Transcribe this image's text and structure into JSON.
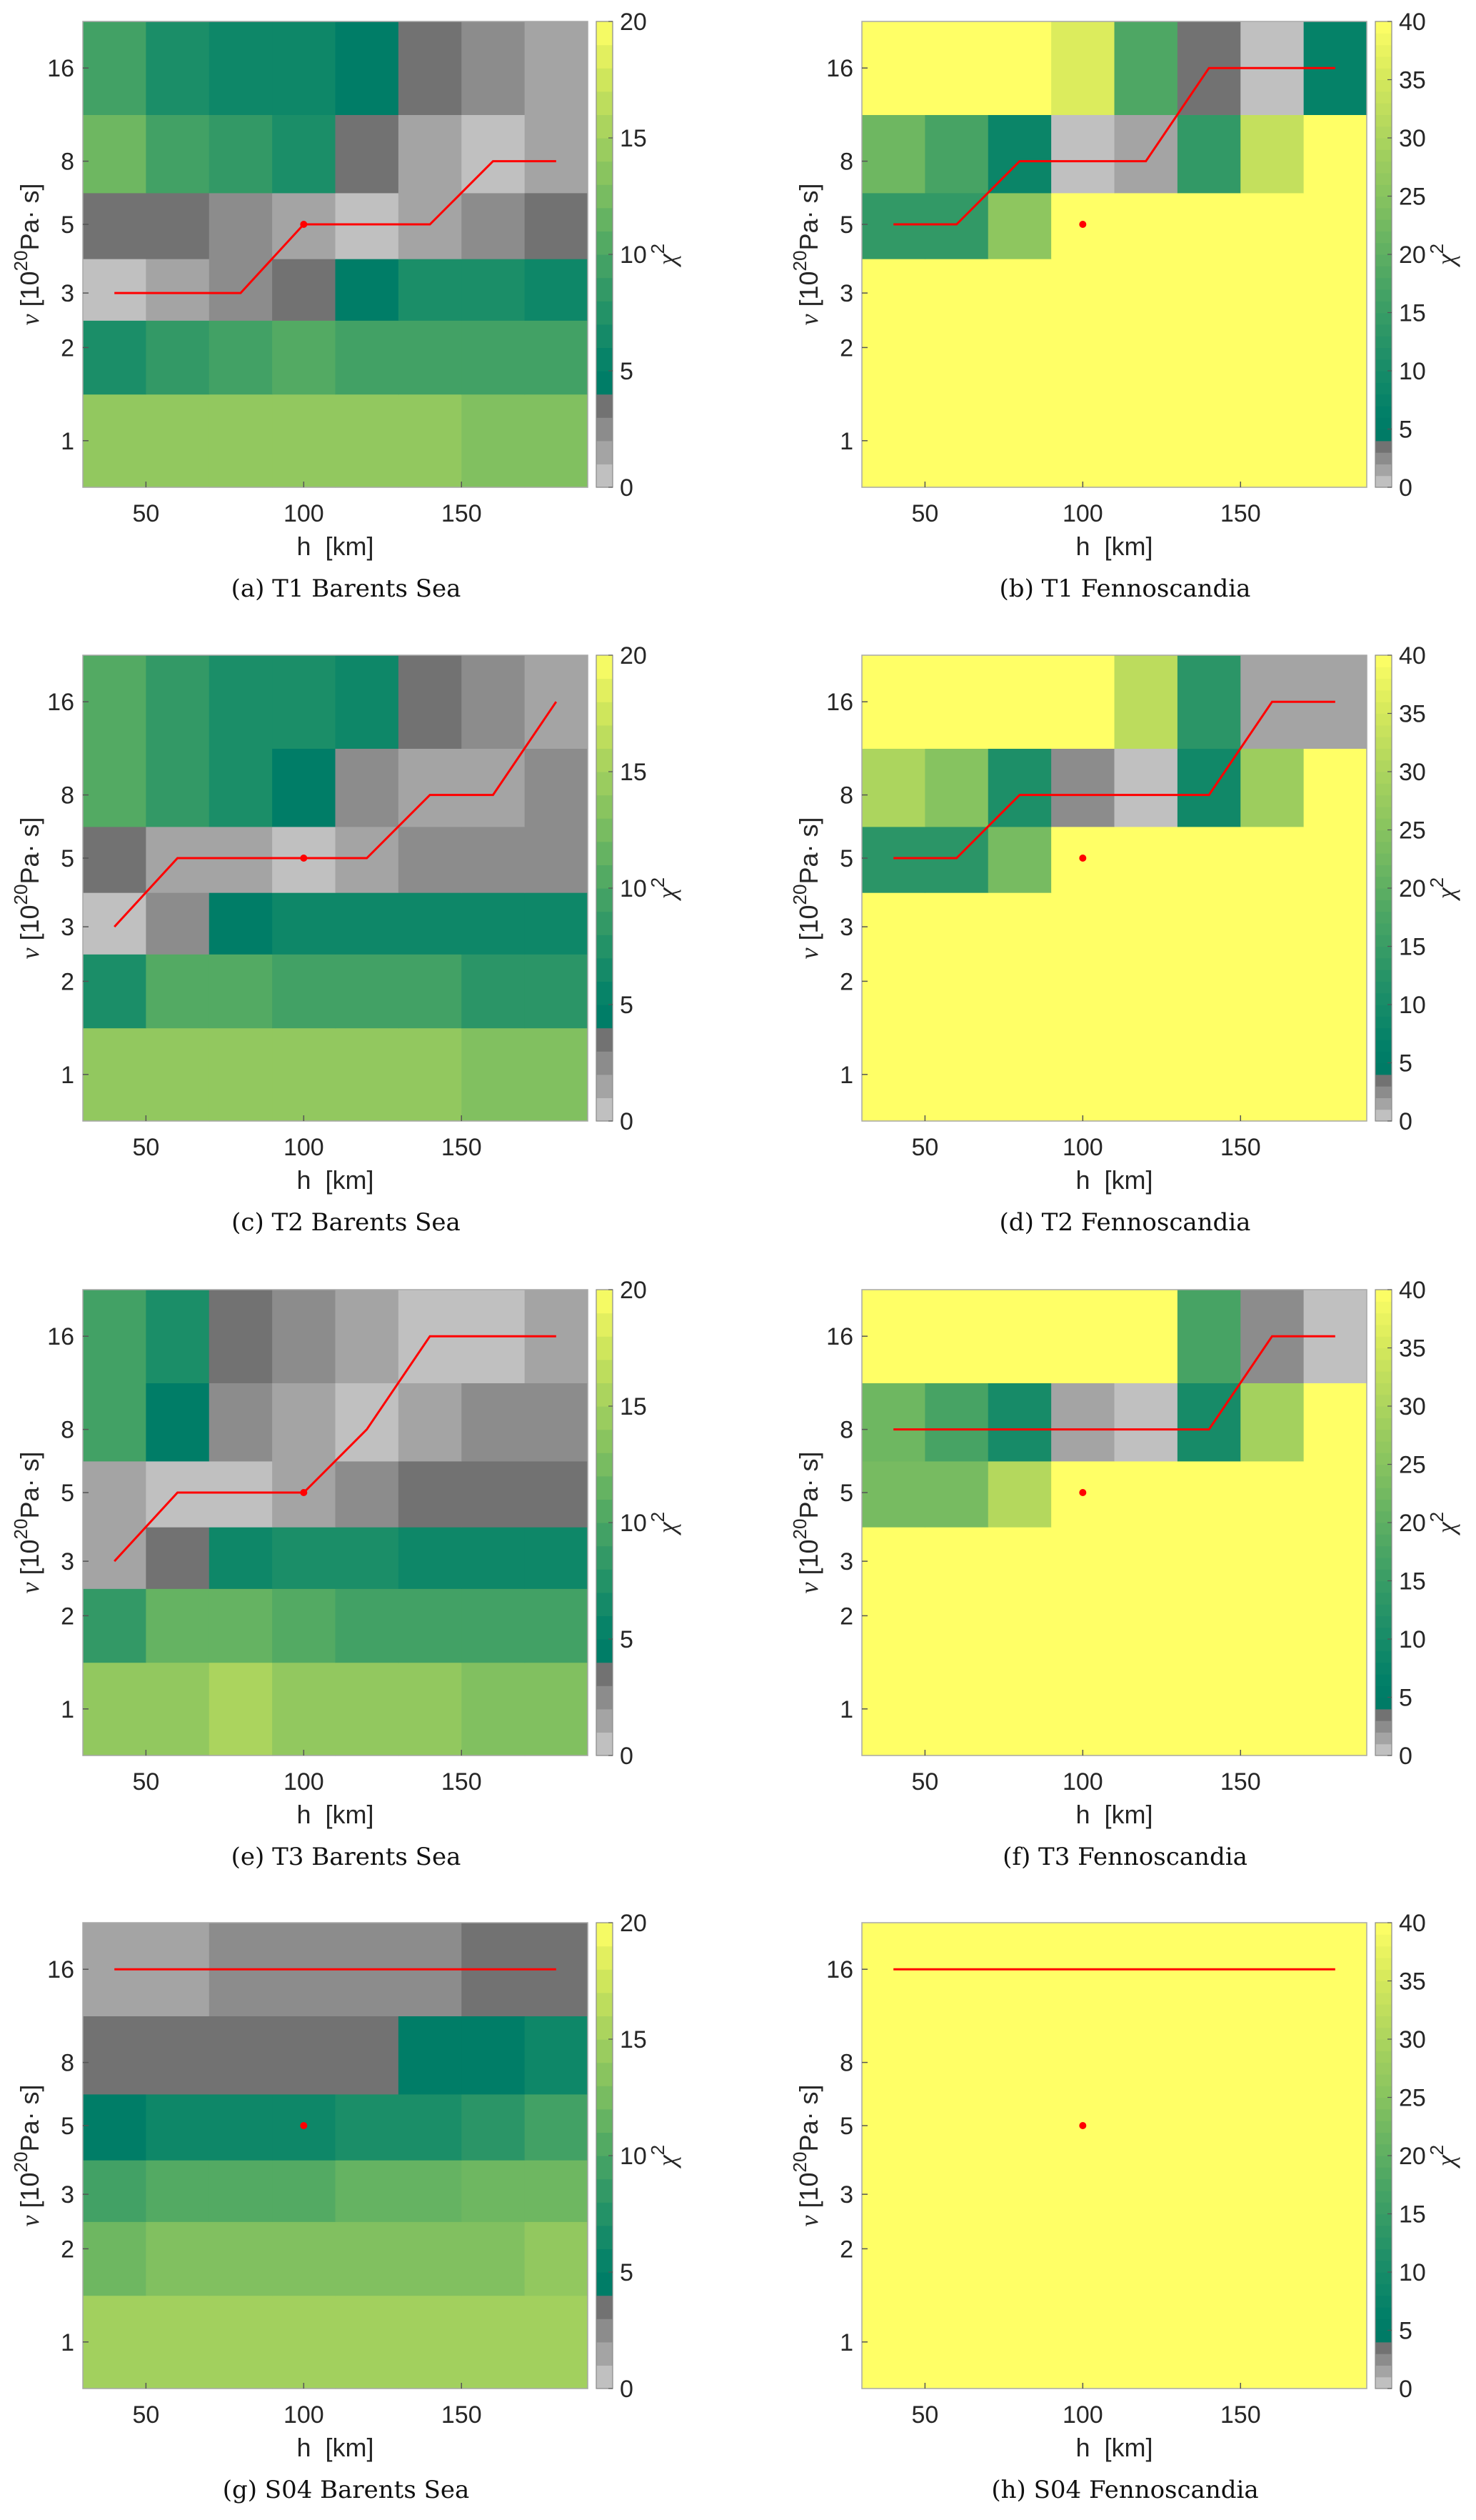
{
  "chart_data": [
    {
      "type": "heatmap",
      "caption": "(a) T1 Barents Sea",
      "xlabel": "h  [km]",
      "ylabel": {
        "symbol": "ν",
        "unit_base": " [10",
        "unit_exp": "20",
        "unit_rest": "Pa· s]"
      },
      "colorbar_label": {
        "symbol": "χ",
        "exp": "2"
      },
      "x": [
        40,
        60,
        80,
        100,
        120,
        140,
        160,
        180
      ],
      "xlim": [
        30,
        190
      ],
      "xticks": [
        "50",
        "100",
        "150"
      ],
      "y": [
        1,
        2,
        3,
        5,
        8,
        16
      ],
      "yscale": "log",
      "yticks": [
        "1",
        "2",
        "3",
        "5",
        "8",
        "16"
      ],
      "clim": [
        0,
        20
      ],
      "colorbar_ticks": [
        "0",
        "5",
        "10",
        "15",
        "20"
      ],
      "z": [
        [
          14,
          14,
          14,
          14,
          14,
          14,
          13,
          13
        ],
        [
          7,
          8.5,
          9.5,
          10.5,
          9.5,
          9.5,
          9.5,
          9.5
        ],
        [
          0.5,
          1.5,
          2.5,
          3.5,
          4.5,
          7,
          7,
          6
        ],
        [
          3.5,
          3.5,
          2.5,
          1.5,
          0.5,
          1.5,
          2.5,
          3.5
        ],
        [
          12,
          9.5,
          8.5,
          7,
          3.5,
          1.5,
          0.5,
          1.5
        ],
        [
          9.5,
          7,
          6,
          6,
          4.5,
          3.5,
          2.5,
          1.5
        ]
      ],
      "best_fit_line": [
        [
          40,
          3
        ],
        [
          80,
          3
        ],
        [
          100,
          5
        ],
        [
          140,
          5
        ],
        [
          160,
          8
        ],
        [
          180,
          8
        ]
      ],
      "reference_point": [
        100,
        5
      ]
    },
    {
      "type": "heatmap",
      "caption": "(b) T1 Fennoscandia",
      "xlabel": "h  [km]",
      "ylabel": {
        "symbol": "ν",
        "unit_base": " [10",
        "unit_exp": "20",
        "unit_rest": "Pa· s]"
      },
      "colorbar_label": {
        "symbol": "χ",
        "exp": "2"
      },
      "x": [
        40,
        60,
        80,
        100,
        120,
        140,
        160,
        180
      ],
      "xlim": [
        30,
        190
      ],
      "xticks": [
        "50",
        "100",
        "150"
      ],
      "y": [
        1,
        2,
        3,
        5,
        8,
        16
      ],
      "yscale": "log",
      "yticks": [
        "1",
        "2",
        "3",
        "5",
        "8",
        "16"
      ],
      "clim": [
        0,
        40
      ],
      "colorbar_ticks": [
        "0",
        "5",
        "10",
        "15",
        "20",
        "25",
        "30",
        "35",
        "40"
      ],
      "z": [
        [
          40,
          40,
          40,
          40,
          40,
          40,
          40,
          40
        ],
        [
          40,
          40,
          40,
          40,
          40,
          40,
          40,
          40
        ],
        [
          40,
          40,
          40,
          40,
          40,
          40,
          40,
          40
        ],
        [
          14,
          14,
          26,
          40,
          40,
          40,
          40,
          40
        ],
        [
          22,
          17,
          8,
          0.5,
          1.5,
          14,
          33,
          40
        ],
        [
          40,
          40,
          40,
          36,
          18,
          3.5,
          0.5,
          7
        ]
      ],
      "best_fit_line": [
        [
          40,
          5
        ],
        [
          60,
          5
        ],
        [
          80,
          8
        ],
        [
          120,
          8
        ],
        [
          140,
          16
        ],
        [
          180,
          16
        ]
      ],
      "reference_point": [
        100,
        5
      ]
    },
    {
      "type": "heatmap",
      "caption": "(c) T2 Barents Sea",
      "xlabel": "h  [km]",
      "ylabel": {
        "symbol": "ν",
        "unit_base": " [10",
        "unit_exp": "20",
        "unit_rest": "Pa· s]"
      },
      "colorbar_label": {
        "symbol": "χ",
        "exp": "2"
      },
      "x": [
        40,
        60,
        80,
        100,
        120,
        140,
        160,
        180
      ],
      "xlim": [
        30,
        190
      ],
      "xticks": [
        "50",
        "100",
        "150"
      ],
      "y": [
        1,
        2,
        3,
        5,
        8,
        16
      ],
      "yscale": "log",
      "yticks": [
        "1",
        "2",
        "3",
        "5",
        "8",
        "16"
      ],
      "clim": [
        0,
        20
      ],
      "colorbar_ticks": [
        "0",
        "5",
        "10",
        "15",
        "20"
      ],
      "z": [
        [
          14,
          14,
          14,
          14,
          14,
          14,
          13,
          13
        ],
        [
          7,
          10.5,
          10.5,
          9.5,
          9.5,
          9.5,
          8,
          8
        ],
        [
          0.5,
          2.5,
          4.5,
          6,
          6,
          6,
          6,
          6
        ],
        [
          3.5,
          1.5,
          1.5,
          0.5,
          1.5,
          2.5,
          2.5,
          2.5
        ],
        [
          10.5,
          8.5,
          7,
          4.5,
          2.5,
          1.5,
          1.5,
          2.5
        ],
        [
          10.5,
          8.5,
          7,
          7,
          6,
          3.5,
          2.5,
          1.5
        ]
      ],
      "best_fit_line": [
        [
          40,
          3
        ],
        [
          60,
          5
        ],
        [
          120,
          5
        ],
        [
          140,
          8
        ],
        [
          160,
          8
        ],
        [
          180,
          16
        ]
      ],
      "reference_point": [
        100,
        5
      ]
    },
    {
      "type": "heatmap",
      "caption": "(d) T2 Fennoscandia",
      "xlabel": "h  [km]",
      "ylabel": {
        "symbol": "ν",
        "unit_base": " [10",
        "unit_exp": "20",
        "unit_rest": "Pa· s]"
      },
      "colorbar_label": {
        "symbol": "χ",
        "exp": "2"
      },
      "x": [
        40,
        60,
        80,
        100,
        120,
        140,
        160,
        180
      ],
      "xlim": [
        30,
        190
      ],
      "xticks": [
        "50",
        "100",
        "150"
      ],
      "y": [
        1,
        2,
        3,
        5,
        8,
        16
      ],
      "yscale": "log",
      "yticks": [
        "1",
        "2",
        "3",
        "5",
        "8",
        "16"
      ],
      "clim": [
        0,
        40
      ],
      "colorbar_ticks": [
        "0",
        "5",
        "10",
        "15",
        "20",
        "25",
        "30",
        "35",
        "40"
      ],
      "z": [
        [
          40,
          40,
          40,
          40,
          40,
          40,
          40,
          40
        ],
        [
          40,
          40,
          40,
          40,
          40,
          40,
          40,
          40
        ],
        [
          40,
          40,
          40,
          40,
          40,
          40,
          40,
          40
        ],
        [
          13,
          13,
          23,
          40,
          40,
          40,
          40,
          40
        ],
        [
          30,
          25,
          11,
          2.5,
          0.5,
          9,
          28,
          40
        ],
        [
          40,
          40,
          40,
          40,
          32,
          13,
          1.5,
          1.5
        ]
      ],
      "best_fit_line": [
        [
          40,
          5
        ],
        [
          60,
          5
        ],
        [
          80,
          8
        ],
        [
          140,
          8
        ],
        [
          160,
          16
        ],
        [
          180,
          16
        ]
      ],
      "reference_point": [
        100,
        5
      ]
    },
    {
      "type": "heatmap",
      "caption": "(e) T3 Barents Sea",
      "xlabel": "h  [km]",
      "ylabel": {
        "symbol": "ν",
        "unit_base": " [10",
        "unit_exp": "20",
        "unit_rest": "Pa· s]"
      },
      "colorbar_label": {
        "symbol": "χ",
        "exp": "2"
      },
      "x": [
        40,
        60,
        80,
        100,
        120,
        140,
        160,
        180
      ],
      "xlim": [
        30,
        190
      ],
      "xticks": [
        "50",
        "100",
        "150"
      ],
      "y": [
        1,
        2,
        3,
        5,
        8,
        16
      ],
      "yscale": "log",
      "yticks": [
        "1",
        "2",
        "3",
        "5",
        "8",
        "16"
      ],
      "clim": [
        0,
        20
      ],
      "colorbar_ticks": [
        "0",
        "5",
        "10",
        "15",
        "20"
      ],
      "z": [
        [
          14,
          14,
          15.5,
          14,
          14,
          14,
          13,
          13
        ],
        [
          8.5,
          11.5,
          11.5,
          10.5,
          9.5,
          9.5,
          9.5,
          9.5
        ],
        [
          1.5,
          3.5,
          6,
          7,
          7,
          6,
          6,
          6
        ],
        [
          1.5,
          0.5,
          0.5,
          1.5,
          2.5,
          3.5,
          3.5,
          3.5
        ],
        [
          9.5,
          4.5,
          2.5,
          1.5,
          0.5,
          1.5,
          2.5,
          2.5
        ],
        [
          9.5,
          7,
          3.5,
          2.5,
          1.5,
          0.5,
          0.5,
          1.5
        ]
      ],
      "best_fit_line": [
        [
          40,
          3
        ],
        [
          60,
          5
        ],
        [
          100,
          5
        ],
        [
          120,
          8
        ],
        [
          140,
          16
        ],
        [
          180,
          16
        ]
      ],
      "reference_point": [
        100,
        5
      ]
    },
    {
      "type": "heatmap",
      "caption": "(f) T3 Fennoscandia",
      "xlabel": "h  [km]",
      "ylabel": {
        "symbol": "ν",
        "unit_base": " [10",
        "unit_exp": "20",
        "unit_rest": "Pa· s]"
      },
      "colorbar_label": {
        "symbol": "χ",
        "exp": "2"
      },
      "x": [
        40,
        60,
        80,
        100,
        120,
        140,
        160,
        180
      ],
      "xlim": [
        30,
        190
      ],
      "xticks": [
        "50",
        "100",
        "150"
      ],
      "y": [
        1,
        2,
        3,
        5,
        8,
        16
      ],
      "yscale": "log",
      "yticks": [
        "1",
        "2",
        "3",
        "5",
        "8",
        "16"
      ],
      "clim": [
        0,
        40
      ],
      "colorbar_ticks": [
        "0",
        "5",
        "10",
        "15",
        "20",
        "25",
        "30",
        "35",
        "40"
      ],
      "z": [
        [
          40,
          40,
          40,
          40,
          40,
          40,
          40,
          40
        ],
        [
          40,
          40,
          40,
          40,
          40,
          40,
          40,
          40
        ],
        [
          40,
          40,
          40,
          40,
          40,
          40,
          40,
          40
        ],
        [
          23,
          23,
          31,
          40,
          40,
          40,
          40,
          40
        ],
        [
          22,
          17,
          10,
          1.5,
          0.5,
          10,
          29,
          40
        ],
        [
          40,
          40,
          40,
          40,
          40,
          17,
          2.5,
          0.5
        ]
      ],
      "best_fit_line": [
        [
          40,
          8
        ],
        [
          140,
          8
        ],
        [
          160,
          16
        ],
        [
          180,
          16
        ]
      ],
      "reference_point": [
        100,
        5
      ]
    },
    {
      "type": "heatmap",
      "caption": "(g) S04 Barents Sea",
      "xlabel": "h  [km]",
      "ylabel": {
        "symbol": "ν",
        "unit_base": " [10",
        "unit_exp": "20",
        "unit_rest": "Pa· s]"
      },
      "colorbar_label": {
        "symbol": "χ",
        "exp": "2"
      },
      "x": [
        40,
        60,
        80,
        100,
        120,
        140,
        160,
        180
      ],
      "xlim": [
        30,
        190
      ],
      "xticks": [
        "50",
        "100",
        "150"
      ],
      "y": [
        1,
        2,
        3,
        5,
        8,
        16
      ],
      "yscale": "log",
      "yticks": [
        "1",
        "2",
        "3",
        "5",
        "8",
        "16"
      ],
      "clim": [
        0,
        20
      ],
      "colorbar_ticks": [
        "0",
        "5",
        "10",
        "15",
        "20"
      ],
      "z": [
        [
          15,
          15,
          15,
          15,
          15,
          15,
          15,
          15
        ],
        [
          12,
          13,
          13,
          13,
          13,
          13,
          13,
          14
        ],
        [
          9.5,
          10.5,
          10.5,
          10.5,
          11.5,
          11.5,
          12,
          12
        ],
        [
          4.5,
          6,
          6,
          6,
          7,
          7,
          8,
          9.5
        ],
        [
          3.5,
          3.5,
          3.5,
          3.5,
          3.5,
          4.5,
          4.5,
          6
        ],
        [
          1.5,
          1.5,
          2.5,
          2.5,
          2.5,
          2.5,
          3.5,
          3.5
        ]
      ],
      "best_fit_line": [
        [
          40,
          16
        ],
        [
          180,
          16
        ]
      ],
      "reference_point": [
        100,
        5
      ]
    },
    {
      "type": "heatmap",
      "caption": "(h) S04 Fennoscandia",
      "xlabel": "h  [km]",
      "ylabel": {
        "symbol": "ν",
        "unit_base": " [10",
        "unit_exp": "20",
        "unit_rest": "Pa· s]"
      },
      "colorbar_label": {
        "symbol": "χ",
        "exp": "2"
      },
      "x": [
        40,
        60,
        80,
        100,
        120,
        140,
        160,
        180
      ],
      "xlim": [
        30,
        190
      ],
      "xticks": [
        "50",
        "100",
        "150"
      ],
      "y": [
        1,
        2,
        3,
        5,
        8,
        16
      ],
      "yscale": "log",
      "yticks": [
        "1",
        "2",
        "3",
        "5",
        "8",
        "16"
      ],
      "clim": [
        0,
        40
      ],
      "colorbar_ticks": [
        "0",
        "5",
        "10",
        "15",
        "20",
        "25",
        "30",
        "35",
        "40"
      ],
      "z": [
        [
          40,
          40,
          40,
          40,
          40,
          40,
          40,
          40
        ],
        [
          40,
          40,
          40,
          40,
          40,
          40,
          40,
          40
        ],
        [
          40,
          40,
          40,
          40,
          40,
          40,
          40,
          40
        ],
        [
          40,
          40,
          40,
          40,
          40,
          40,
          40,
          40
        ],
        [
          40,
          40,
          40,
          40,
          40,
          40,
          40,
          40
        ],
        [
          40,
          40,
          40,
          40,
          40,
          40,
          40,
          40
        ]
      ],
      "best_fit_line": [
        [
          40,
          16
        ],
        [
          180,
          16
        ]
      ],
      "reference_point": [
        100,
        5
      ]
    }
  ],
  "colors": {
    "low_grays": [
      "#c0c0c0",
      "#a4a4a4",
      "#8c8c8c",
      "#727272"
    ],
    "colormap": [
      "#007a66",
      "#007f68",
      "#1c8e68",
      "#4aa564",
      "#80c060",
      "#a3d05e",
      "#d8ea5c",
      "#ffff66"
    ],
    "best_fit_line": "#ff0000",
    "reference_point": "#ff0000"
  }
}
